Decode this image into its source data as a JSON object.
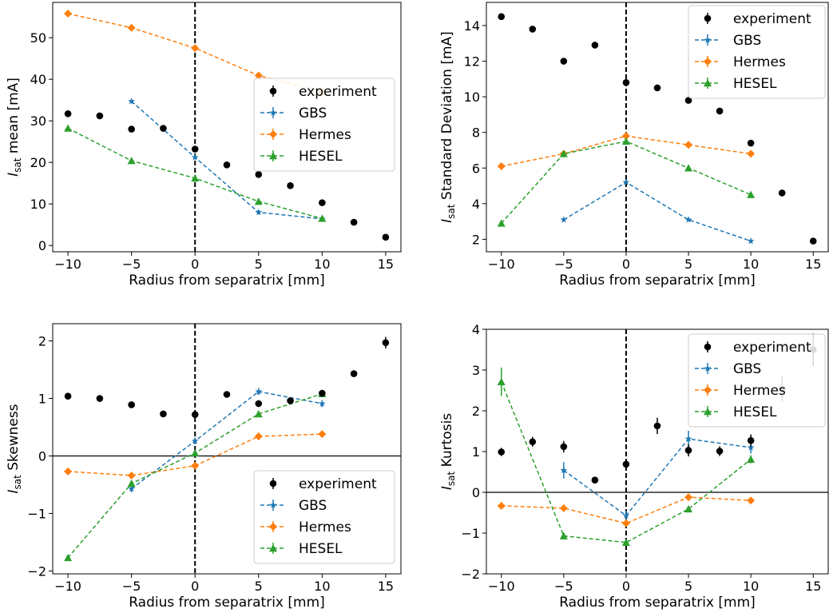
{
  "chart_data": [
    {
      "type": "scatter",
      "xlabel": "Radius from separatrix [mm]",
      "ylabel_symbol": "I",
      "ylabel_sub": "sat",
      "ylabel_text": " mean [mA]",
      "xlim": [
        -11.2,
        16.2
      ],
      "ylim": [
        -1.5,
        58.5
      ],
      "xticks": [
        -10,
        -5,
        0,
        5,
        10,
        15
      ],
      "yticks": [
        0,
        10,
        20,
        30,
        40,
        50
      ],
      "vline_x": 0,
      "hline_y": null,
      "legend_position": "center-right",
      "experiment": {
        "name": "experiment",
        "x": [
          -10,
          -7.5,
          -5,
          -2.5,
          0,
          2.5,
          5,
          7.5,
          10,
          12.5,
          15
        ],
        "y": [
          31.7,
          31.2,
          28.0,
          28.2,
          23.2,
          19.4,
          17.1,
          14.4,
          10.3,
          5.6,
          2.0
        ],
        "err": [
          0.3,
          0.3,
          0.3,
          0.3,
          0.3,
          0.3,
          0.3,
          0.3,
          0.3,
          0.3,
          0.3
        ]
      },
      "series": [
        {
          "name": "GBS",
          "x": [
            -5,
            0,
            5,
            10
          ],
          "y": [
            34.7,
            21.2,
            8.0,
            6.4
          ],
          "err": [
            0.5,
            0.5,
            0.5,
            0.5
          ]
        },
        {
          "name": "Hermes",
          "x": [
            -10,
            -5,
            0,
            5,
            10
          ],
          "y": [
            55.8,
            52.4,
            47.5,
            40.9,
            37.0
          ],
          "err": [
            0.3,
            0.3,
            0.3,
            0.3,
            0.3
          ]
        },
        {
          "name": "HESEL",
          "x": [
            -10,
            -5,
            0,
            5,
            10
          ],
          "y": [
            28.2,
            20.4,
            16.2,
            10.6,
            6.5
          ],
          "err": [
            0.3,
            0.3,
            0.3,
            0.3,
            0.3
          ]
        }
      ]
    },
    {
      "type": "scatter",
      "xlabel": "Radius from separatrix [mm]",
      "ylabel_symbol": "I",
      "ylabel_sub": "sat",
      "ylabel_text": " Standard Deviation [mA]",
      "xlim": [
        -11.2,
        16.2
      ],
      "ylim": [
        1.3,
        15.3
      ],
      "xticks": [
        -10,
        -5,
        0,
        5,
        10,
        15
      ],
      "yticks": [
        2,
        4,
        6,
        8,
        10,
        12,
        14
      ],
      "vline_x": 0,
      "hline_y": null,
      "legend_position": "top-right",
      "experiment": {
        "name": "experiment",
        "x": [
          -10,
          -7.5,
          -5,
          -2.5,
          0,
          2.5,
          5,
          7.5,
          10,
          12.5,
          15
        ],
        "y": [
          14.5,
          13.8,
          12.0,
          12.9,
          10.8,
          10.5,
          9.8,
          9.2,
          7.4,
          4.6,
          1.9
        ],
        "err": [
          0.15,
          0.15,
          0.15,
          0.15,
          0.15,
          0.15,
          0.15,
          0.15,
          0.15,
          0.15,
          0.15
        ]
      },
      "series": [
        {
          "name": "GBS",
          "x": [
            -5,
            0,
            5,
            10
          ],
          "y": [
            3.1,
            5.2,
            3.1,
            1.9
          ],
          "err": [
            0.1,
            0.1,
            0.1,
            0.1
          ]
        },
        {
          "name": "Hermes",
          "x": [
            -10,
            -5,
            0,
            5,
            10
          ],
          "y": [
            6.1,
            6.8,
            7.8,
            7.3,
            6.8
          ],
          "err": [
            0.1,
            0.1,
            0.1,
            0.1,
            0.1
          ]
        },
        {
          "name": "HESEL",
          "x": [
            -10,
            -5,
            0,
            5,
            10
          ],
          "y": [
            2.9,
            6.8,
            7.5,
            6.0,
            4.5
          ],
          "err": [
            0.1,
            0.1,
            0.1,
            0.1,
            0.1
          ]
        }
      ]
    },
    {
      "type": "scatter",
      "xlabel": "Radius from separatrix [mm]",
      "ylabel_symbol": "I",
      "ylabel_sub": "sat",
      "ylabel_text": " Skewness",
      "xlim": [
        -11.2,
        16.2
      ],
      "ylim": [
        -2.05,
        2.3
      ],
      "xticks": [
        -10,
        -5,
        0,
        5,
        10,
        15
      ],
      "yticks": [
        -2,
        -1,
        0,
        1,
        2
      ],
      "vline_x": 0,
      "hline_y": 0,
      "legend_position": "bottom-right",
      "experiment": {
        "name": "experiment",
        "x": [
          -10,
          -7.5,
          -5,
          -2.5,
          0,
          2.5,
          5,
          7.5,
          10,
          12.5,
          15
        ],
        "y": [
          1.04,
          1.0,
          0.89,
          0.73,
          0.72,
          1.07,
          0.91,
          0.96,
          1.09,
          1.43,
          1.97
        ],
        "err": [
          0.03,
          0.03,
          0.03,
          0.03,
          0.03,
          0.03,
          0.03,
          0.03,
          0.03,
          0.03,
          0.1
        ]
      },
      "series": [
        {
          "name": "GBS",
          "x": [
            -5,
            0,
            5,
            10
          ],
          "y": [
            -0.57,
            0.26,
            1.12,
            0.91
          ],
          "err": [
            0.06,
            0.06,
            0.06,
            0.06
          ]
        },
        {
          "name": "Hermes",
          "x": [
            -10,
            -5,
            0,
            5,
            10
          ],
          "y": [
            -0.27,
            -0.34,
            -0.17,
            0.34,
            0.38
          ],
          "err": [
            0.03,
            0.03,
            0.03,
            0.03,
            0.03
          ]
        },
        {
          "name": "HESEL",
          "x": [
            -10,
            -5,
            0,
            5,
            10
          ],
          "y": [
            -1.77,
            -0.48,
            0.05,
            0.73,
            1.08
          ],
          "err": [
            0.03,
            0.03,
            0.03,
            0.03,
            0.03
          ]
        }
      ]
    },
    {
      "type": "scatter",
      "xlabel": "Radius from separatrix [mm]",
      "ylabel_symbol": "I",
      "ylabel_sub": "sat",
      "ylabel_text": " Kurtosis",
      "xlim": [
        -11.2,
        16.2
      ],
      "ylim": [
        -2,
        4
      ],
      "xticks": [
        -10,
        -5,
        0,
        5,
        10,
        15
      ],
      "yticks": [
        -2,
        -1,
        0,
        1,
        2,
        3,
        4
      ],
      "vline_x": 0,
      "hline_y": 0,
      "legend_position": "top-right",
      "experiment": {
        "name": "experiment",
        "x": [
          -10,
          -7.5,
          -5,
          -2.5,
          0,
          2.5,
          5,
          7.5,
          10,
          12.5,
          15
        ],
        "y": [
          0.99,
          1.24,
          1.12,
          0.3,
          0.69,
          1.63,
          1.03,
          1.01,
          1.27,
          2.54,
          3.5
        ],
        "err": [
          0.1,
          0.12,
          0.14,
          0.06,
          0.1,
          0.2,
          0.15,
          0.12,
          0.15,
          0.3,
          0.4
        ]
      },
      "series": [
        {
          "name": "GBS",
          "x": [
            -5,
            0,
            5,
            10
          ],
          "y": [
            0.54,
            -0.57,
            1.31,
            1.1
          ],
          "err": [
            0.2,
            0.12,
            0.2,
            0.15
          ]
        },
        {
          "name": "Hermes",
          "x": [
            -10,
            -5,
            0,
            5,
            10
          ],
          "y": [
            -0.33,
            -0.39,
            -0.76,
            -0.12,
            -0.2
          ],
          "err": [
            0.05,
            0.05,
            0.05,
            0.05,
            0.05
          ]
        },
        {
          "name": "HESEL",
          "x": [
            -10,
            -5,
            0,
            5,
            10
          ],
          "y": [
            2.71,
            -1.07,
            -1.23,
            -0.41,
            0.81
          ],
          "err": [
            0.35,
            0.05,
            0.05,
            0.05,
            0.1
          ]
        }
      ]
    }
  ],
  "style": {
    "experiment_color": "#000000",
    "series_colors": [
      "#1f77b4",
      "#ff7f0e",
      "#2ca02c"
    ],
    "series_markers": [
      "star",
      "diamond",
      "triangle"
    ],
    "vline_style": "dashed-black",
    "hline_style": "solid-black"
  }
}
